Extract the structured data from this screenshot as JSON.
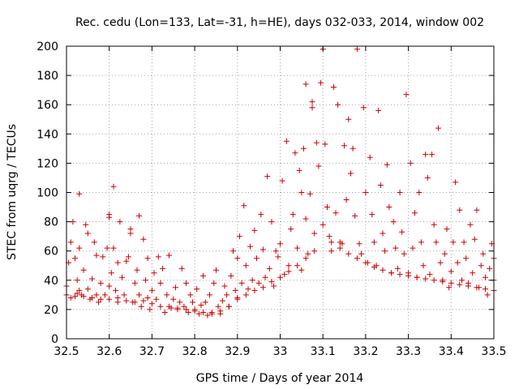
{
  "chart_data": {
    "type": "scatter",
    "title": "Rec. cedu (Lon=133, Lat=-31, h=HE), days 032-033, 2014, window 002",
    "xlabel": "GPS time / Days of year 2014",
    "ylabel": "STEC from uqrg / TECUs",
    "xlim": [
      32.5,
      33.5
    ],
    "ylim": [
      0,
      200
    ],
    "xticks": [
      32.5,
      32.6,
      32.7,
      32.8,
      32.9,
      33.0,
      33.1,
      33.2,
      33.3,
      33.4,
      33.5
    ],
    "xtick_labels": [
      "32.5",
      "32.6",
      "32.7",
      "32.8",
      "32.9",
      "33",
      "33.1",
      "33.2",
      "33.3",
      "33.4",
      "33.5"
    ],
    "yticks": [
      0,
      20,
      40,
      60,
      80,
      100,
      120,
      140,
      160,
      180,
      200
    ],
    "ytick_labels": [
      "0",
      "20",
      "40",
      "60",
      "80",
      "100",
      "120",
      "140",
      "160",
      "180",
      "200"
    ],
    "grid": true,
    "marker": "+",
    "marker_color": "#cc0000",
    "series": [
      {
        "name": "STEC",
        "points": [
          [
            32.5,
            30
          ],
          [
            32.5,
            36
          ],
          [
            32.505,
            52
          ],
          [
            32.51,
            66
          ],
          [
            32.515,
            80
          ],
          [
            32.52,
            29
          ],
          [
            32.52,
            55
          ],
          [
            32.525,
            40
          ],
          [
            32.53,
            99
          ],
          [
            32.53,
            62
          ],
          [
            32.53,
            33
          ],
          [
            32.535,
            30
          ],
          [
            32.54,
            47
          ],
          [
            32.545,
            78
          ],
          [
            32.55,
            72
          ],
          [
            32.55,
            34
          ],
          [
            32.555,
            27
          ],
          [
            32.56,
            41
          ],
          [
            32.565,
            66
          ],
          [
            32.57,
            57
          ],
          [
            32.57,
            30
          ],
          [
            32.575,
            25
          ],
          [
            32.58,
            38
          ],
          [
            32.585,
            56
          ],
          [
            32.59,
            30
          ],
          [
            32.595,
            62
          ],
          [
            32.6,
            85
          ],
          [
            32.6,
            83
          ],
          [
            32.6,
            36
          ],
          [
            32.6,
            27
          ],
          [
            32.605,
            45
          ],
          [
            32.61,
            104
          ],
          [
            32.61,
            62
          ],
          [
            32.615,
            33
          ],
          [
            32.62,
            52
          ],
          [
            32.62,
            25
          ],
          [
            32.625,
            80
          ],
          [
            32.63,
            42
          ],
          [
            32.635,
            30
          ],
          [
            32.64,
            53
          ],
          [
            32.645,
            56
          ],
          [
            32.65,
            75
          ],
          [
            32.65,
            72
          ],
          [
            32.655,
            25
          ],
          [
            32.66,
            38
          ],
          [
            32.665,
            47
          ],
          [
            32.67,
            84
          ],
          [
            32.67,
            30
          ],
          [
            32.675,
            22
          ],
          [
            32.68,
            68
          ],
          [
            32.685,
            40
          ],
          [
            32.69,
            55
          ],
          [
            32.69,
            28
          ],
          [
            32.695,
            20
          ],
          [
            32.7,
            33
          ],
          [
            32.705,
            45
          ],
          [
            32.71,
            27
          ],
          [
            32.715,
            56
          ],
          [
            32.72,
            22
          ],
          [
            32.72,
            38
          ],
          [
            32.725,
            48
          ],
          [
            32.73,
            18
          ],
          [
            32.735,
            30
          ],
          [
            32.74,
            57
          ],
          [
            32.745,
            21
          ],
          [
            32.75,
            27
          ],
          [
            32.755,
            35
          ],
          [
            32.76,
            20
          ],
          [
            32.765,
            25
          ],
          [
            32.77,
            48
          ],
          [
            32.775,
            22
          ],
          [
            32.78,
            38
          ],
          [
            32.785,
            18
          ],
          [
            32.79,
            30
          ],
          [
            32.795,
            25
          ],
          [
            32.8,
            20
          ],
          [
            32.805,
            34
          ],
          [
            32.81,
            17
          ],
          [
            32.815,
            23
          ],
          [
            32.82,
            43
          ],
          [
            32.825,
            25
          ],
          [
            32.83,
            16
          ],
          [
            32.835,
            30
          ],
          [
            32.84,
            17
          ],
          [
            32.845,
            38
          ],
          [
            32.85,
            47
          ],
          [
            32.855,
            22
          ],
          [
            32.86,
            17
          ],
          [
            32.865,
            26
          ],
          [
            32.87,
            36
          ],
          [
            32.875,
            30
          ],
          [
            32.88,
            22
          ],
          [
            32.885,
            43
          ],
          [
            32.89,
            60
          ],
          [
            32.895,
            33
          ],
          [
            32.9,
            28
          ],
          [
            32.9,
            55
          ],
          [
            32.905,
            70
          ],
          [
            32.91,
            38
          ],
          [
            32.915,
            91
          ],
          [
            32.92,
            50
          ],
          [
            32.925,
            34
          ],
          [
            32.93,
            63
          ],
          [
            32.935,
            40
          ],
          [
            32.94,
            74
          ],
          [
            32.945,
            55
          ],
          [
            32.95,
            38
          ],
          [
            32.955,
            85
          ],
          [
            32.96,
            61
          ],
          [
            32.965,
            42
          ],
          [
            32.97,
            111
          ],
          [
            32.975,
            48
          ],
          [
            32.98,
            80
          ],
          [
            32.985,
            36
          ],
          [
            32.99,
            60
          ],
          [
            32.995,
            56
          ],
          [
            33.0,
            65
          ],
          [
            33.005,
            108
          ],
          [
            33.01,
            44
          ],
          [
            33.015,
            135
          ],
          [
            33.02,
            50
          ],
          [
            33.025,
            75
          ],
          [
            33.03,
            85
          ],
          [
            33.035,
            127
          ],
          [
            33.04,
            62
          ],
          [
            33.045,
            115
          ],
          [
            33.05,
            100
          ],
          [
            33.05,
            47
          ],
          [
            33.055,
            130
          ],
          [
            33.06,
            174
          ],
          [
            33.06,
            82
          ],
          [
            33.065,
            58
          ],
          [
            33.07,
            99
          ],
          [
            33.075,
            162
          ],
          [
            33.075,
            158
          ],
          [
            33.08,
            72
          ],
          [
            33.085,
            134
          ],
          [
            33.09,
            118
          ],
          [
            33.095,
            175
          ],
          [
            33.1,
            198
          ],
          [
            33.1,
            78
          ],
          [
            33.105,
            133
          ],
          [
            33.11,
            90
          ],
          [
            33.115,
            70
          ],
          [
            33.12,
            60
          ],
          [
            33.125,
            172
          ],
          [
            33.13,
            86
          ],
          [
            33.135,
            160
          ],
          [
            33.14,
            66
          ],
          [
            33.145,
            65
          ],
          [
            33.15,
            132
          ],
          [
            33.155,
            95
          ],
          [
            33.16,
            150
          ],
          [
            33.165,
            113
          ],
          [
            33.17,
            130
          ],
          [
            33.175,
            84
          ],
          [
            33.18,
            198
          ],
          [
            33.185,
            65
          ],
          [
            33.19,
            58
          ],
          [
            33.195,
            158
          ],
          [
            33.2,
            100
          ],
          [
            33.205,
            52
          ],
          [
            33.21,
            124
          ],
          [
            33.215,
            85
          ],
          [
            33.22,
            66
          ],
          [
            33.225,
            50
          ],
          [
            33.23,
            156
          ],
          [
            33.235,
            105
          ],
          [
            33.24,
            72
          ],
          [
            33.245,
            60
          ],
          [
            33.25,
            119
          ],
          [
            33.255,
            90
          ],
          [
            33.26,
            45
          ],
          [
            33.265,
            80
          ],
          [
            33.27,
            62
          ],
          [
            33.275,
            48
          ],
          [
            33.28,
            100
          ],
          [
            33.285,
            73
          ],
          [
            33.29,
            58
          ],
          [
            33.295,
            167
          ],
          [
            33.3,
            45
          ],
          [
            33.305,
            120
          ],
          [
            33.31,
            62
          ],
          [
            33.315,
            86
          ],
          [
            33.32,
            42
          ],
          [
            33.325,
            100
          ],
          [
            33.33,
            66
          ],
          [
            33.335,
            50
          ],
          [
            33.34,
            126
          ],
          [
            33.345,
            110
          ],
          [
            33.35,
            44
          ],
          [
            33.355,
            126
          ],
          [
            33.36,
            78
          ],
          [
            33.365,
            66
          ],
          [
            33.37,
            144
          ],
          [
            33.375,
            52
          ],
          [
            33.38,
            40
          ],
          [
            33.385,
            58
          ],
          [
            33.39,
            75
          ],
          [
            33.395,
            35
          ],
          [
            33.4,
            46
          ],
          [
            33.405,
            66
          ],
          [
            33.41,
            107
          ],
          [
            33.415,
            52
          ],
          [
            33.42,
            88
          ],
          [
            33.425,
            40
          ],
          [
            33.43,
            66
          ],
          [
            33.435,
            55
          ],
          [
            33.44,
            38
          ],
          [
            33.445,
            78
          ],
          [
            33.45,
            45
          ],
          [
            33.455,
            68
          ],
          [
            33.46,
            88
          ],
          [
            33.465,
            35
          ],
          [
            33.47,
            50
          ],
          [
            33.475,
            58
          ],
          [
            33.48,
            42
          ],
          [
            33.485,
            30
          ],
          [
            33.49,
            48
          ],
          [
            33.495,
            65
          ],
          [
            32.51,
            28
          ],
          [
            32.525,
            31
          ],
          [
            32.54,
            29
          ],
          [
            32.56,
            28
          ],
          [
            32.58,
            27
          ],
          [
            32.62,
            28
          ],
          [
            32.64,
            26
          ],
          [
            32.66,
            25
          ],
          [
            32.68,
            26
          ],
          [
            32.7,
            24
          ],
          [
            32.74,
            22
          ],
          [
            32.76,
            21
          ],
          [
            32.78,
            20
          ],
          [
            32.8,
            19
          ],
          [
            32.82,
            18
          ],
          [
            32.84,
            18
          ],
          [
            32.86,
            19
          ],
          [
            32.88,
            22
          ],
          [
            32.9,
            27
          ],
          [
            32.92,
            30
          ],
          [
            32.94,
            33
          ],
          [
            32.96,
            35
          ],
          [
            32.98,
            39
          ],
          [
            33.0,
            42
          ],
          [
            33.02,
            46
          ],
          [
            33.04,
            50
          ],
          [
            33.06,
            55
          ],
          [
            33.08,
            60
          ],
          [
            33.12,
            66
          ],
          [
            33.14,
            62
          ],
          [
            33.16,
            58
          ],
          [
            33.18,
            55
          ],
          [
            33.2,
            52
          ],
          [
            33.22,
            49
          ],
          [
            33.24,
            47
          ],
          [
            33.26,
            45
          ],
          [
            33.28,
            44
          ],
          [
            33.3,
            43
          ],
          [
            33.32,
            42
          ],
          [
            33.34,
            41
          ],
          [
            33.36,
            40
          ],
          [
            33.38,
            39
          ],
          [
            33.4,
            38
          ],
          [
            33.42,
            37
          ],
          [
            33.44,
            36
          ],
          [
            33.46,
            35
          ],
          [
            33.48,
            34
          ],
          [
            33.5,
            33
          ],
          [
            33.5,
            40
          ],
          [
            33.5,
            55
          ]
        ]
      }
    ]
  }
}
